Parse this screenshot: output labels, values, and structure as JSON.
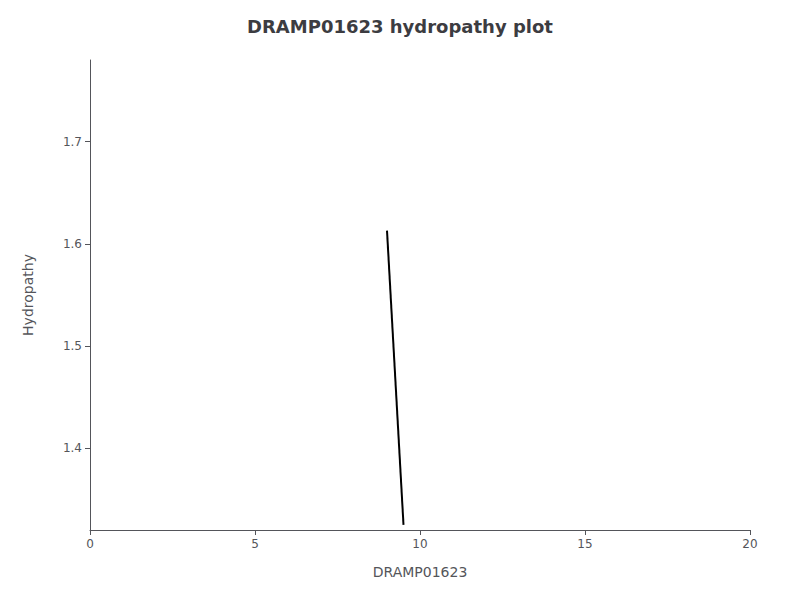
{
  "chart_data": {
    "type": "line",
    "title": "DRAMP01623 hydropathy plot",
    "xlabel": "DRAMP01623",
    "ylabel": "Hydropathy",
    "x": [
      9.0,
      9.5
    ],
    "values": [
      1.613,
      1.325
    ],
    "color": "#000000",
    "xlim": [
      0,
      20
    ],
    "ylim": [
      1.32,
      1.78
    ],
    "xticks": [
      0,
      5,
      10,
      15,
      20
    ],
    "yticks": [
      1.4,
      1.5,
      1.6,
      1.7
    ],
    "grid": false
  }
}
